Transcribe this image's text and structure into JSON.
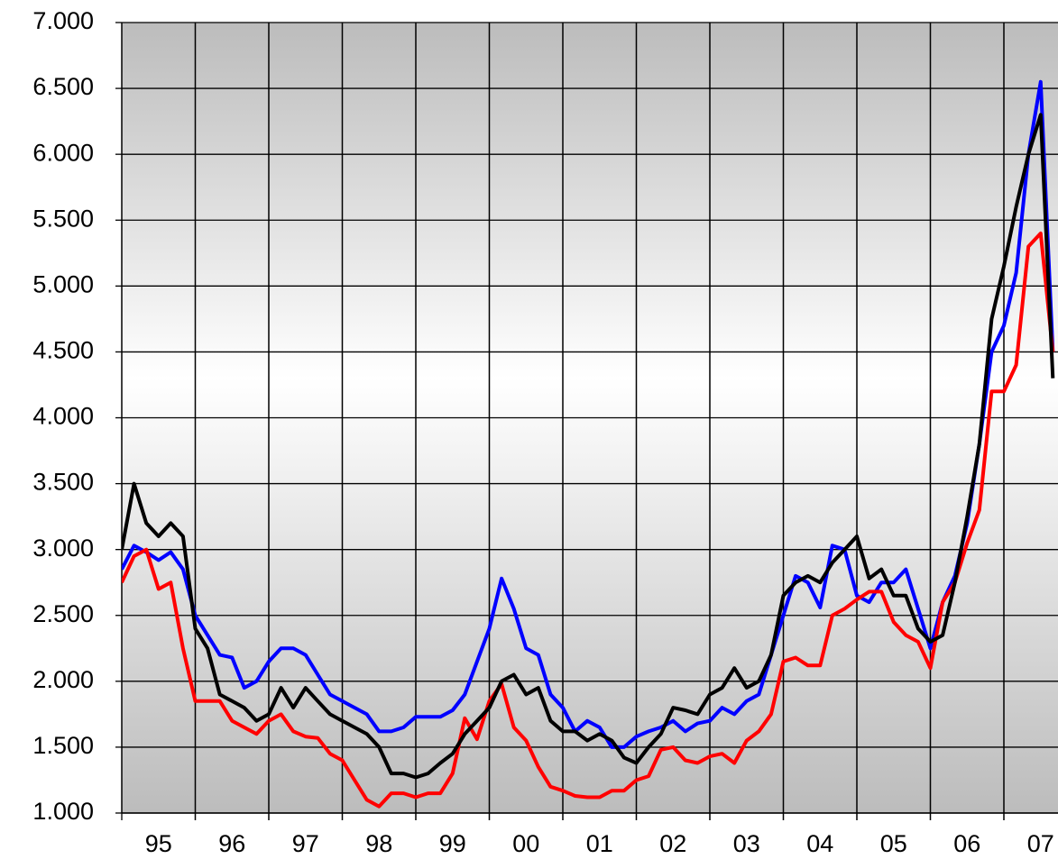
{
  "chart_data": {
    "type": "line",
    "categories": [
      null,
      null,
      null,
      "95",
      null,
      null,
      null,
      null,
      null,
      "96",
      null,
      null,
      null,
      null,
      null,
      "97",
      null,
      null,
      null,
      null,
      null,
      "98",
      null,
      null,
      null,
      null,
      null,
      "99",
      null,
      null,
      null,
      null,
      null,
      "00",
      null,
      null,
      null,
      null,
      null,
      "01",
      null,
      null,
      null,
      null,
      null,
      "02",
      null,
      null,
      null,
      null,
      null,
      "03",
      null,
      null,
      null,
      null,
      null,
      "04",
      null,
      null,
      null,
      null,
      null,
      "05",
      null,
      null,
      null,
      null,
      null,
      "06",
      null,
      null,
      null,
      null,
      null,
      "07",
      null
    ],
    "series": [
      {
        "color": "#0000ff",
        "values": [
          2850,
          3030,
          2980,
          2920,
          2980,
          2850,
          2500,
          2350,
          2200,
          2180,
          1950,
          2000,
          2150,
          2250,
          2250,
          2200,
          2050,
          1900,
          1850,
          1800,
          1750,
          1620,
          1620,
          1650,
          1730,
          1730,
          1730,
          1780,
          1900,
          2150,
          2400,
          2780,
          2550,
          2250,
          2200,
          1900,
          1800,
          1620,
          1700,
          1650,
          1500,
          1500,
          1580,
          1620,
          1650,
          1700,
          1620,
          1680,
          1700,
          1800,
          1750,
          1850,
          1900,
          2200,
          2500,
          2800,
          2750,
          2560,
          3030,
          3000,
          2650,
          2600,
          2750,
          2750,
          2850,
          2550,
          2250,
          2600,
          2800,
          3200,
          3800,
          4500,
          4700,
          5100,
          6000,
          6550,
          4500
        ]
      },
      {
        "color": "#ff0000",
        "values": [
          2750,
          2950,
          3000,
          2700,
          2750,
          2250,
          1850,
          1850,
          1850,
          1700,
          1650,
          1600,
          1700,
          1750,
          1620,
          1580,
          1570,
          1450,
          1400,
          1250,
          1100,
          1050,
          1150,
          1150,
          1120,
          1150,
          1150,
          1300,
          1720,
          1560,
          1850,
          1980,
          1650,
          1550,
          1350,
          1200,
          1170,
          1130,
          1120,
          1120,
          1170,
          1170,
          1250,
          1280,
          1480,
          1500,
          1400,
          1380,
          1430,
          1450,
          1380,
          1550,
          1620,
          1750,
          2150,
          2180,
          2120,
          2120,
          2500,
          2550,
          2620,
          2680,
          2680,
          2450,
          2350,
          2300,
          2100,
          2600,
          2750,
          3050,
          3300,
          4200,
          4200,
          4400,
          5300,
          5400,
          4500
        ]
      },
      {
        "color": "#000000",
        "values": [
          3000,
          3500,
          3200,
          3100,
          3200,
          3100,
          2400,
          2250,
          1900,
          1850,
          1800,
          1700,
          1750,
          1950,
          1800,
          1950,
          1850,
          1750,
          1700,
          1650,
          1600,
          1500,
          1300,
          1300,
          1270,
          1300,
          1380,
          1450,
          1600,
          1700,
          1800,
          2000,
          2050,
          1900,
          1950,
          1700,
          1620,
          1620,
          1550,
          1600,
          1550,
          1420,
          1380,
          1500,
          1600,
          1800,
          1780,
          1750,
          1900,
          1950,
          2100,
          1950,
          2000,
          2200,
          2650,
          2750,
          2800,
          2750,
          2900,
          3000,
          3100,
          2780,
          2850,
          2650,
          2650,
          2400,
          2300,
          2350,
          2750,
          3250,
          3800,
          4750,
          5150,
          5600,
          6000,
          6300,
          4300
        ]
      }
    ],
    "ylim": [
      1000,
      7000
    ],
    "yticks": [
      {
        "value": 1000,
        "label": "1.000"
      },
      {
        "value": 1500,
        "label": "1.500"
      },
      {
        "value": 2000,
        "label": "2.000"
      },
      {
        "value": 2500,
        "label": "2.500"
      },
      {
        "value": 3000,
        "label": "3.000"
      },
      {
        "value": 3500,
        "label": "3.500"
      },
      {
        "value": 4000,
        "label": "4.000"
      },
      {
        "value": 4500,
        "label": "4.500"
      },
      {
        "value": 5000,
        "label": "5.000"
      },
      {
        "value": 5500,
        "label": "5.500"
      },
      {
        "value": 6000,
        "label": "6.000"
      },
      {
        "value": 6500,
        "label": "6.500"
      },
      {
        "value": 7000,
        "label": "7.000"
      }
    ],
    "grid": true
  }
}
